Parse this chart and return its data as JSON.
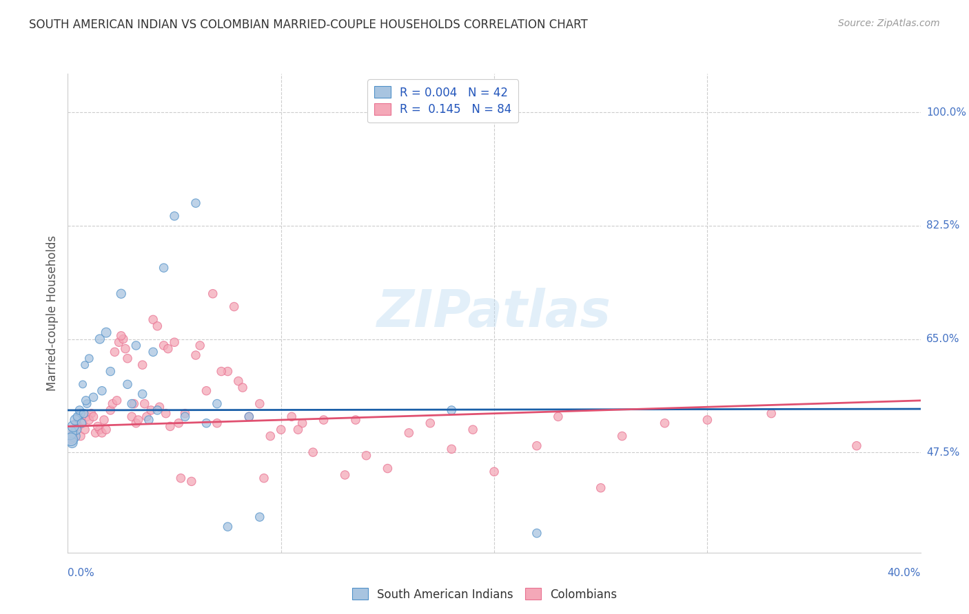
{
  "title": "SOUTH AMERICAN INDIAN VS COLOMBIAN MARRIED-COUPLE HOUSEHOLDS CORRELATION CHART",
  "source": "Source: ZipAtlas.com",
  "ylabel": "Married-couple Households",
  "yticks": [
    47.5,
    65.0,
    82.5,
    100.0
  ],
  "xlim": [
    0.0,
    40.0
  ],
  "ylim": [
    32.0,
    106.0
  ],
  "watermark": "ZIPatlas",
  "legend": {
    "blue_r": "0.004",
    "blue_n": "42",
    "pink_r": "0.145",
    "pink_n": "84"
  },
  "blue_color": "#a8c4e0",
  "pink_color": "#f4a8b8",
  "blue_edge_color": "#4f90c8",
  "pink_edge_color": "#e87090",
  "blue_line_color": "#1a5fa8",
  "pink_line_color": "#e05070",
  "title_color": "#333333",
  "source_color": "#999999",
  "axis_label_color": "#555555",
  "tick_color_right": "#4472c4",
  "grid_color": "#cccccc",
  "blue_scatter_x": [
    0.5,
    0.8,
    1.0,
    0.3,
    0.4,
    0.6,
    0.7,
    0.2,
    0.9,
    1.5,
    1.8,
    2.5,
    3.0,
    3.2,
    4.0,
    4.5,
    5.0,
    6.0,
    7.0,
    8.5,
    0.1,
    0.15,
    0.25,
    0.35,
    0.45,
    0.55,
    0.65,
    0.75,
    0.85,
    1.2,
    1.6,
    2.0,
    2.8,
    3.5,
    4.2,
    5.5,
    6.5,
    7.5,
    9.0,
    18.0,
    22.0,
    3.8
  ],
  "blue_scatter_y": [
    53.0,
    61.0,
    62.0,
    50.0,
    51.0,
    53.5,
    58.0,
    49.0,
    55.0,
    65.0,
    66.0,
    72.0,
    55.0,
    64.0,
    63.0,
    76.0,
    84.0,
    86.0,
    55.0,
    53.0,
    50.5,
    49.5,
    51.5,
    52.5,
    53.0,
    54.0,
    52.0,
    53.5,
    55.5,
    56.0,
    57.0,
    60.0,
    58.0,
    56.5,
    54.0,
    53.0,
    52.0,
    36.0,
    37.5,
    54.0,
    35.0,
    52.5
  ],
  "blue_scatter_s": [
    80,
    60,
    70,
    150,
    100,
    80,
    60,
    120,
    70,
    90,
    100,
    90,
    80,
    80,
    80,
    80,
    80,
    80,
    80,
    80,
    200,
    180,
    130,
    110,
    80,
    80,
    80,
    80,
    80,
    80,
    80,
    80,
    80,
    80,
    80,
    80,
    80,
    80,
    80,
    80,
    80,
    80
  ],
  "pink_scatter_x": [
    0.3,
    0.5,
    0.7,
    0.9,
    1.1,
    1.3,
    1.5,
    1.7,
    2.0,
    2.2,
    2.4,
    2.6,
    2.8,
    3.0,
    3.2,
    3.5,
    3.7,
    4.0,
    4.2,
    4.5,
    4.7,
    5.0,
    5.2,
    5.5,
    6.0,
    6.5,
    7.0,
    7.5,
    8.0,
    8.5,
    9.0,
    10.0,
    11.0,
    13.0,
    14.0,
    18.0,
    22.0,
    28.0,
    0.15,
    0.25,
    0.4,
    0.6,
    0.8,
    1.0,
    1.2,
    1.4,
    1.6,
    1.8,
    2.1,
    2.3,
    2.5,
    2.7,
    3.1,
    3.3,
    3.6,
    3.9,
    4.3,
    4.8,
    5.3,
    6.2,
    7.2,
    8.2,
    9.5,
    11.5,
    20.0,
    25.0,
    12.0,
    15.0,
    17.0,
    10.5,
    6.8,
    7.8,
    9.2,
    10.8,
    13.5,
    16.0,
    19.0,
    23.0,
    26.0,
    30.0,
    33.0,
    37.0,
    4.6,
    5.8
  ],
  "pink_scatter_y": [
    50.0,
    51.5,
    52.0,
    53.0,
    53.5,
    50.5,
    51.0,
    52.5,
    54.0,
    63.0,
    64.5,
    65.0,
    62.0,
    53.0,
    52.0,
    61.0,
    53.0,
    68.0,
    67.0,
    64.0,
    63.5,
    64.5,
    52.0,
    53.5,
    62.5,
    57.0,
    52.0,
    60.0,
    58.5,
    53.0,
    55.0,
    51.0,
    52.0,
    44.0,
    47.0,
    48.0,
    48.5,
    52.0,
    49.5,
    50.5,
    52.0,
    50.0,
    51.0,
    52.5,
    53.0,
    51.5,
    50.5,
    51.0,
    55.0,
    55.5,
    65.5,
    63.5,
    55.0,
    52.5,
    55.0,
    54.0,
    54.5,
    51.5,
    43.5,
    64.0,
    60.0,
    57.5,
    50.0,
    47.5,
    44.5,
    42.0,
    52.5,
    45.0,
    52.0,
    53.0,
    72.0,
    70.0,
    43.5,
    51.0,
    52.5,
    50.5,
    51.0,
    53.0,
    50.0,
    52.5,
    53.5,
    48.5,
    53.5,
    43.0
  ],
  "pink_scatter_s": [
    80,
    80,
    80,
    80,
    80,
    80,
    80,
    80,
    80,
    80,
    80,
    80,
    80,
    80,
    80,
    80,
    80,
    80,
    80,
    80,
    80,
    80,
    80,
    80,
    80,
    80,
    80,
    80,
    80,
    80,
    80,
    80,
    80,
    80,
    80,
    80,
    80,
    80,
    80,
    80,
    80,
    80,
    80,
    80,
    80,
    80,
    80,
    80,
    80,
    80,
    80,
    80,
    80,
    80,
    80,
    80,
    80,
    80,
    80,
    80,
    80,
    80,
    80,
    80,
    80,
    80,
    80,
    80,
    80,
    80,
    80,
    80,
    80,
    80,
    80,
    80,
    80,
    80,
    80,
    80,
    80,
    80,
    80,
    80
  ],
  "blue_trend_x": [
    0.0,
    40.0
  ],
  "blue_trend_y": [
    54.0,
    54.2
  ],
  "pink_trend_x": [
    0.0,
    40.0
  ],
  "pink_trend_y": [
    51.5,
    55.5
  ]
}
